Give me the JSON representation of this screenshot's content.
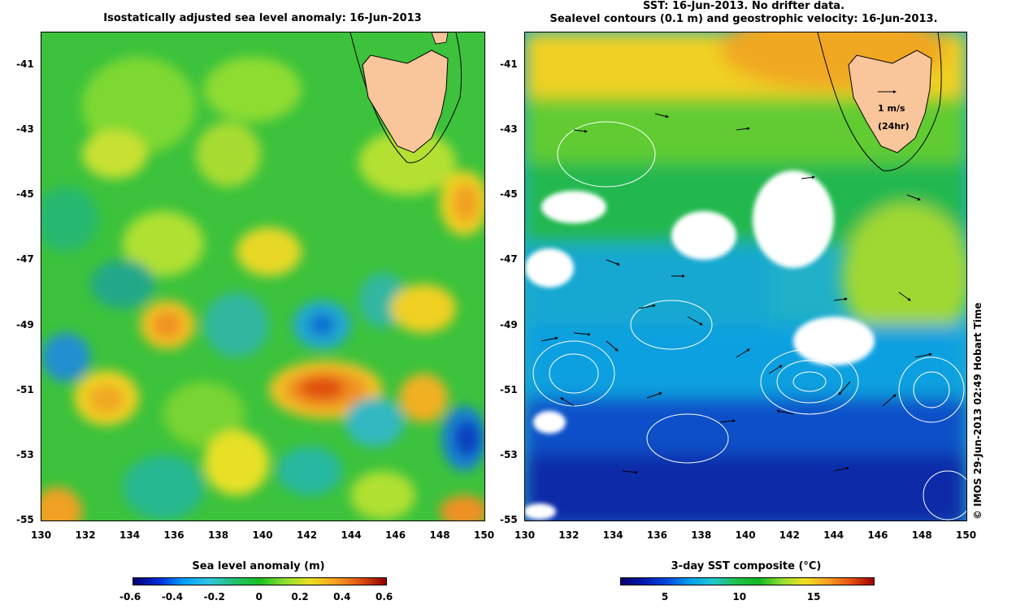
{
  "left": {
    "title": "Isostatically adjusted sea level anomaly: 16-Jun-2013",
    "colorbar_title": "Sea level anomaly (m)",
    "colorbar_ticks": [
      "-0.6",
      "-0.4",
      "-0.2",
      "0",
      "0.2",
      "0.4",
      "0.6"
    ],
    "colorbar_range": [
      -0.6,
      0.6
    ]
  },
  "right": {
    "title_line1": "SST: 16-Jun-2013. No drifter data.",
    "title_line2": "Sealevel contours (0.1 m) and geostrophic velocity: 16-Jun-2013.",
    "colorbar_title": "3-day SST composite (°C)",
    "colorbar_ticks": [
      "5",
      "10",
      "15"
    ],
    "colorbar_range": [
      2,
      19
    ],
    "velocity_reference": "1 m/s",
    "velocity_reference_note": "(24hr)"
  },
  "axes": {
    "x_ticks": [
      "130",
      "132",
      "134",
      "136",
      "138",
      "140",
      "142",
      "144",
      "146",
      "148",
      "150"
    ],
    "y_ticks": [
      "-41",
      "-43",
      "-45",
      "-47",
      "-49",
      "-51",
      "-53",
      "-55"
    ],
    "lon_range": [
      130,
      150
    ],
    "lat_range": [
      -55,
      -40
    ]
  },
  "copyright": "© IMOS 29-Jun-2013 02:49 Hobart Time",
  "colors": {
    "land": "#f9c59a",
    "sla_neutral": "#2ec04a",
    "sst_warm": "#f4c020",
    "sst_cold": "#0a2aa8",
    "cloud": "#ffffff"
  }
}
